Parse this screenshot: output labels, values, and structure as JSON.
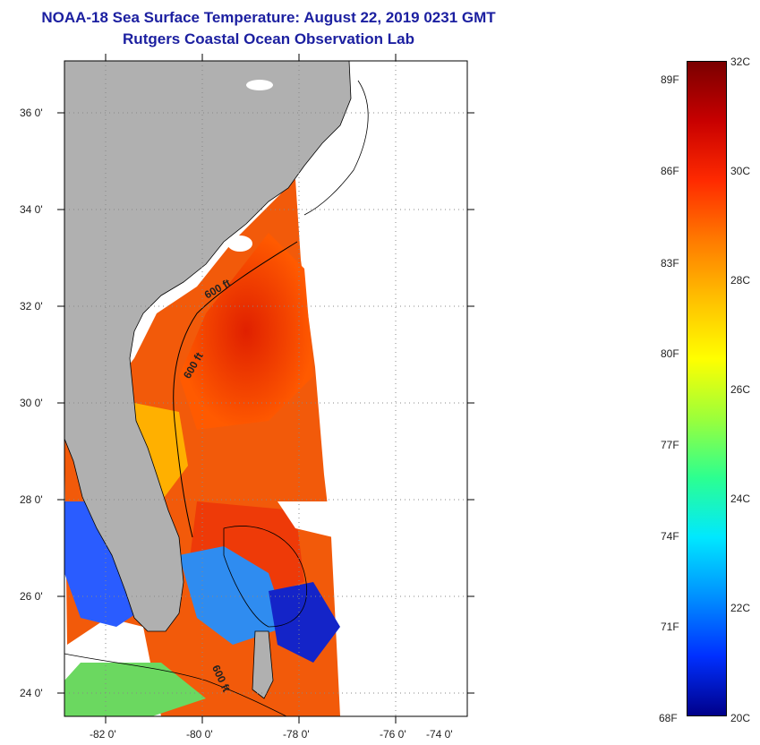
{
  "header": {
    "title": "NOAA-18 Sea Surface Temperature:  August 22, 2019 0231 GMT",
    "subtitle": "Rutgers Coastal Ocean Observation Lab"
  },
  "map": {
    "lat_labels": [
      "36 0'",
      "34 0'",
      "32 0'",
      "30 0'",
      "28 0'",
      "26 0'",
      "24 0'"
    ],
    "lon_labels": [
      "-82 0'",
      "-80 0'",
      "-78 0'",
      "-76 0'",
      "-74 0'"
    ],
    "contour_labels": [
      "600 ft",
      "600 ft",
      "600 ft"
    ],
    "colors": {
      "land": "#b0b0b0",
      "no_data": "#ffffff",
      "frame": "#000000"
    }
  },
  "colorbar": {
    "fahrenheit_labels": [
      "89F",
      "86F",
      "83F",
      "80F",
      "77F",
      "74F",
      "71F",
      "68F"
    ],
    "celsius_labels": [
      "32C",
      "30C",
      "28C",
      "26C",
      "24C",
      "22C",
      "20C"
    ],
    "stops": [
      "#7a0000",
      "#c80000",
      "#ff2a00",
      "#ff7a00",
      "#ffc000",
      "#ffff00",
      "#9cff3a",
      "#2cff90",
      "#00e8ff",
      "#0090ff",
      "#0030ff",
      "#00008a"
    ]
  }
}
